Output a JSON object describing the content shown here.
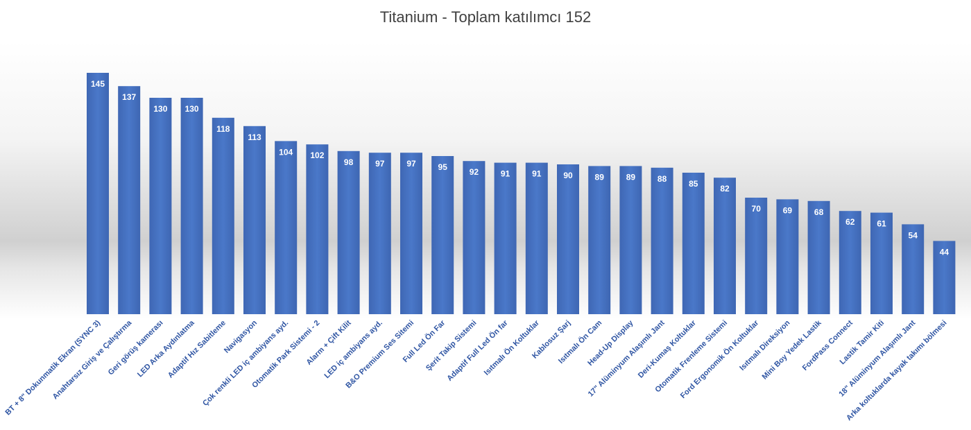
{
  "chart_data": {
    "type": "bar",
    "title": "Titanium - Toplam katılımcı 152",
    "xlabel": "",
    "ylabel": "",
    "ylim": [
      0,
      150
    ],
    "grid": false,
    "legend": "none",
    "bar_color": "#4472c4",
    "categories": [
      "BT + 8\" Dokunmatik Ekran (SYNC 3)",
      "Anahtarsız Giriş ve Çalıştırma",
      "Geri görüş kamerası",
      "LED Arka Aydınlatma",
      "Adaptif Hız Sabitleme",
      "Navigasyon",
      "Çok renkli LED iç ambiyans ayd.",
      "Otomatik Park Sistemi - 2",
      "Alarm + Çift Kilit",
      "LED iç ambiyans ayd.",
      "B&O Premium Ses Sitemi",
      "Full Led Ön Far",
      "Şerit Takip Sistemi",
      "Adaptif Full Led Ön far",
      "Isıtmalı Ön Koltuklar",
      "Kablosuz Şarj",
      "Isıtmalı Ön Cam",
      "Head-Up Display",
      "17\" Alüminyum Alaşımlı Jant",
      "Deri-Kumaş Koltuklar",
      "Otomatik Frenleme Sistemi",
      "Ford Ergonomik Ön Koltuklar",
      "Isıtmalı Direksiyon",
      "Mini Boy Yedek Lastik",
      "FordPass Connect",
      "Lastik Tamir Kiti",
      "18\" Alüminyum Alaşımlı Jant",
      "Arka koltuklarda kayak takımı bölmesi"
    ],
    "values": [
      145,
      137,
      130,
      130,
      118,
      113,
      104,
      102,
      98,
      97,
      97,
      95,
      92,
      91,
      91,
      90,
      89,
      89,
      88,
      85,
      82,
      70,
      69,
      68,
      62,
      61,
      54,
      44
    ]
  }
}
